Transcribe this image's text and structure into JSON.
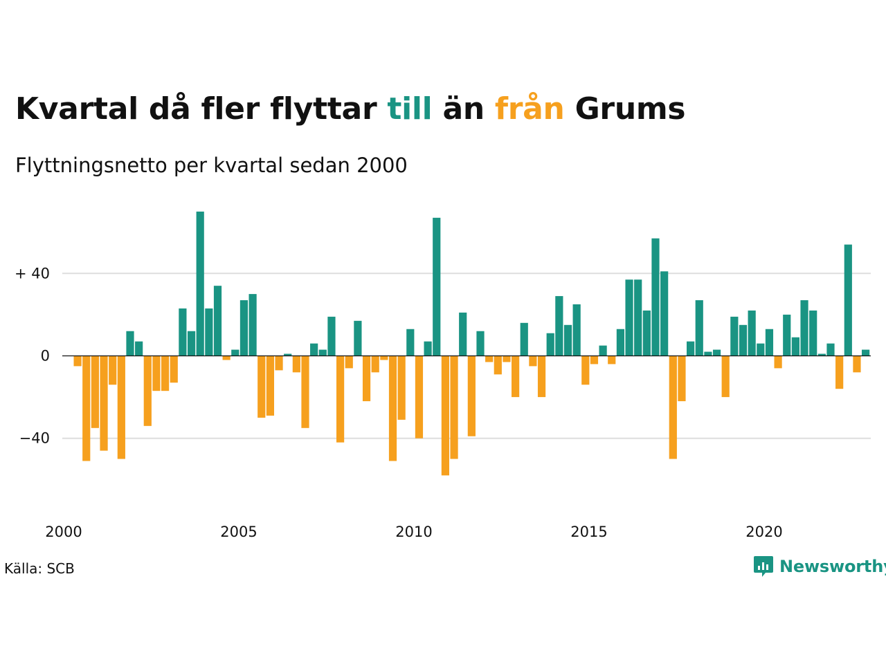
{
  "title": {
    "part1": "Kvartal då fler flyttar ",
    "till": "till",
    "part2": " än ",
    "fran": "från",
    "part3": " Grums"
  },
  "subtitle": "Flyttningsnetto per kvartal sedan 2000",
  "source": "Källa: SCB",
  "brand": "Newsworthy",
  "colors": {
    "positive": "#1a9483",
    "negative": "#f6a01e",
    "grid": "#dddddd",
    "text": "#111111"
  },
  "chart_data": {
    "type": "bar",
    "x_start": "2000 Q1",
    "x_ticks": [
      "2000",
      "2005",
      "2010",
      "2015",
      "2020"
    ],
    "y_ticks": [
      {
        "value": 40,
        "label": "+ 40"
      },
      {
        "value": 0,
        "label": "0"
      },
      {
        "value": -40,
        "label": "−40"
      }
    ],
    "ylim": [
      -75,
      72
    ],
    "grid": true,
    "values": [
      -5,
      -51,
      -35,
      -46,
      -14,
      -50,
      12,
      7,
      -34,
      -17,
      -17,
      -13,
      23,
      12,
      70,
      23,
      34,
      -2,
      3,
      27,
      30,
      -30,
      -29,
      -7,
      1,
      -8,
      -35,
      6,
      3,
      19,
      -42,
      -6,
      17,
      -22,
      -8,
      -2,
      -51,
      -31,
      13,
      -40,
      7,
      67,
      -58,
      -50,
      21,
      -39,
      12,
      -3,
      -9,
      -3,
      -20,
      16,
      -5,
      -20,
      11,
      29,
      15,
      25,
      -14,
      -4,
      5,
      -4,
      13,
      37,
      37,
      22,
      57,
      41,
      -50,
      -22,
      7,
      27,
      2,
      3,
      -20,
      19,
      15,
      22,
      6,
      13,
      -6,
      20,
      9,
      27,
      22,
      1,
      6,
      -16,
      54,
      -8,
      3
    ]
  }
}
